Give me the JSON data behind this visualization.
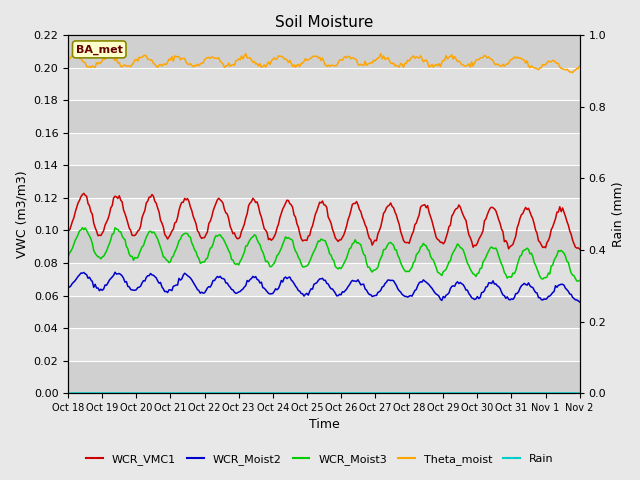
{
  "title": "Soil Moisture",
  "ylabel_left": "VWC (m3/m3)",
  "ylabel_right": "Rain (mm)",
  "xlabel": "Time",
  "annotation_text": "BA_met",
  "ylim_left": [
    0.0,
    0.22
  ],
  "ylim_right": [
    0.0,
    1.0
  ],
  "yticks_left": [
    0.0,
    0.02,
    0.04,
    0.06,
    0.08,
    0.1,
    0.12,
    0.14,
    0.16,
    0.18,
    0.2,
    0.22
  ],
  "yticks_right": [
    0.0,
    0.2,
    0.4,
    0.6,
    0.8,
    1.0
  ],
  "background_color": "#e8e8e8",
  "plot_bg_color": "#d8d8d8",
  "line_colors": {
    "WCR_VMC1": "#cc0000",
    "WCR_Moist2": "#0000cc",
    "WCR_Moist3": "#00cc00",
    "Theta_moist": "#ffa500",
    "Rain": "#00cccc"
  },
  "legend_entries": [
    "WCR_VMC1",
    "WCR_Moist2",
    "WCR_Moist3",
    "Theta_moist",
    "Rain"
  ],
  "x_tick_labels": [
    "Oct 18",
    "Oct 19",
    "Oct 20",
    "Oct 21",
    "Oct 22",
    "Oct 23",
    "Oct 24",
    "Oct 25",
    "Oct 26",
    "Oct 27",
    "Oct 28",
    "Oct 29",
    "Oct 30",
    "Oct 31",
    "Nov 1",
    "Nov 2"
  ],
  "x_tick_labels_nospace": [
    "Oct 18",
    "Oct 19",
    "Oct 20",
    "Oct 21",
    "Oct 22",
    "Oct 23",
    "Oct 24",
    "Oct 25",
    "Oct 26",
    "Oct 27",
    "Oct 28",
    "Oct 29",
    "Oct 30",
    "Oct 31",
    "Nov 1",
    "Nov 2"
  ]
}
